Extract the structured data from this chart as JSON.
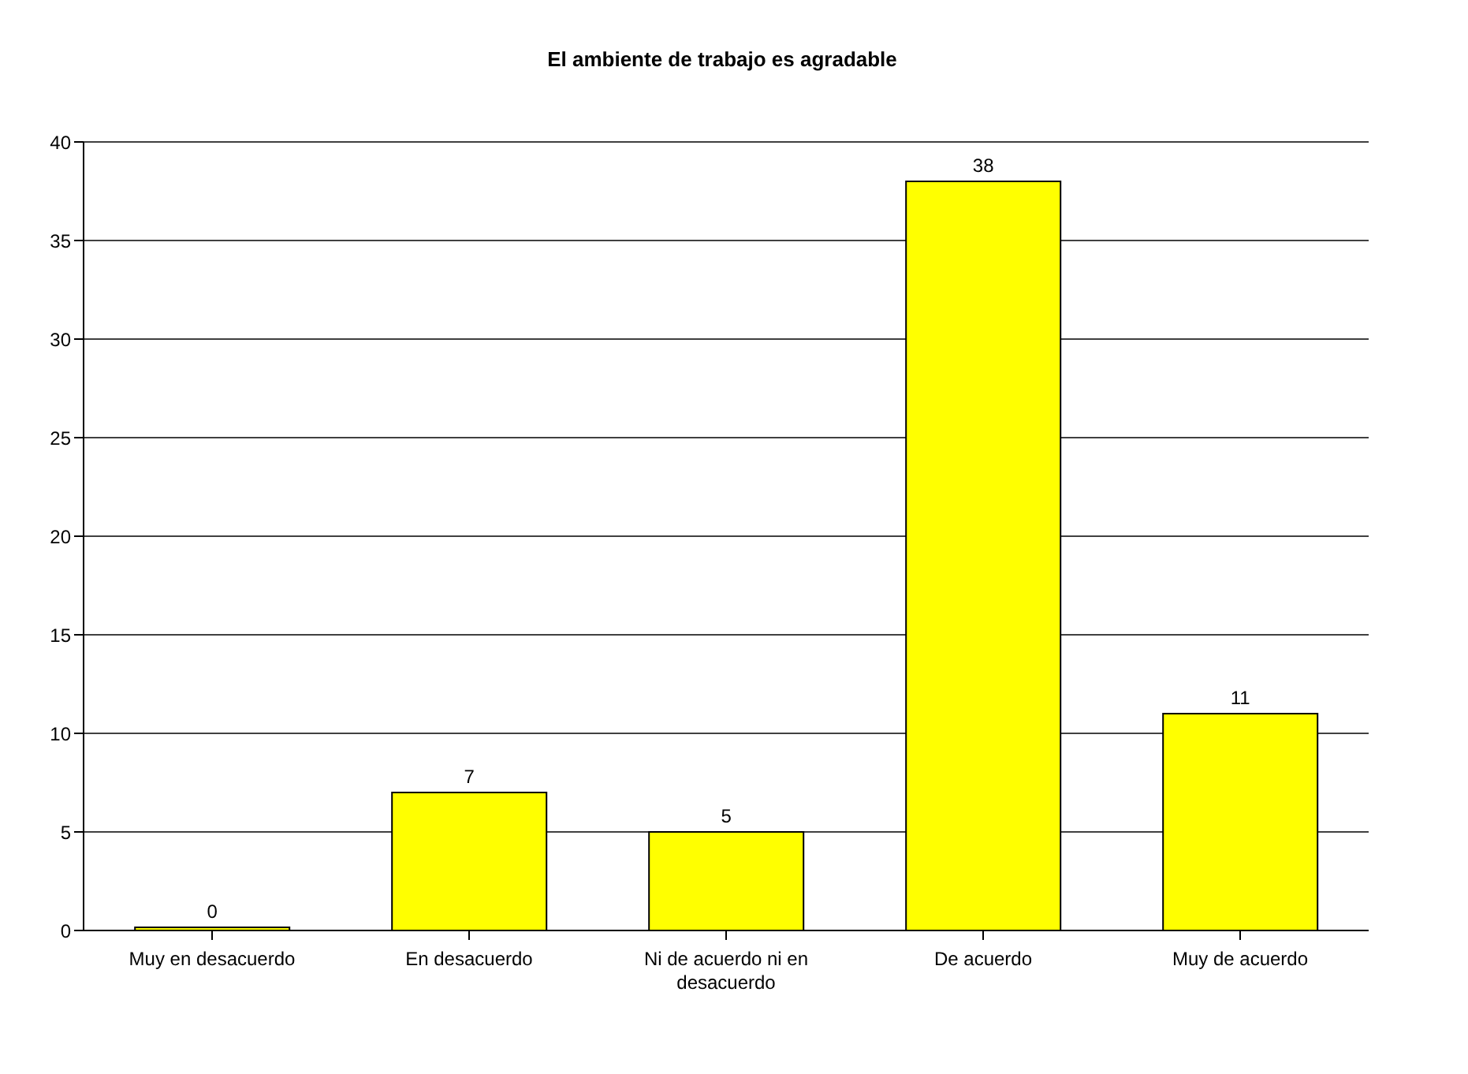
{
  "chart_data": {
    "type": "bar",
    "title": "El ambiente de trabajo es agradable",
    "categories": [
      "Muy en desacuerdo",
      "En desacuerdo",
      "Ni de acuerdo ni en desacuerdo",
      "De acuerdo",
      "Muy de acuerdo"
    ],
    "values": [
      0,
      7,
      5,
      38,
      11
    ],
    "color": "#ffff00",
    "ylim": [
      0,
      40
    ],
    "yticks": [
      0,
      5,
      10,
      15,
      20,
      25,
      30,
      35,
      40
    ],
    "grid": "y",
    "data_labels": true
  }
}
